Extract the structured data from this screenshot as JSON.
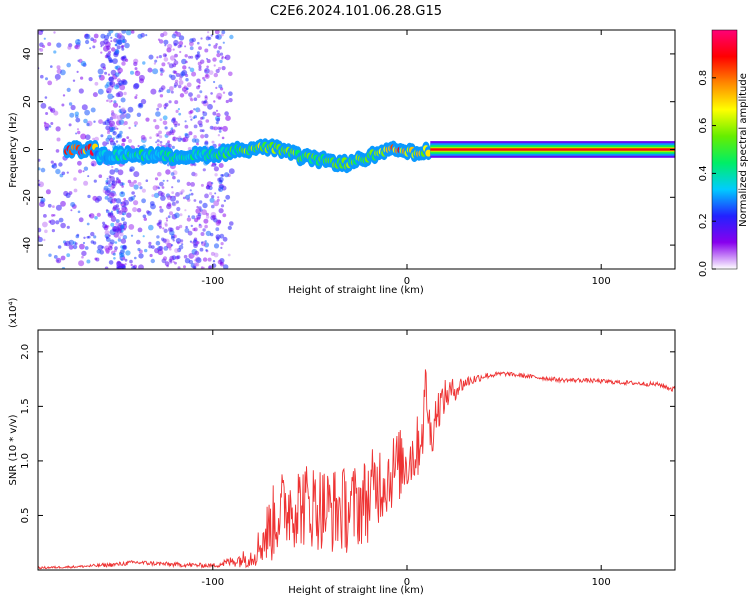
{
  "title": "C2E6.2024.101.06.28.G15",
  "chart_data": [
    {
      "type": "heatmap",
      "xlabel": "Height of straight line (km)",
      "ylabel": "Frequency (Hz)",
      "xlim": [
        -190,
        138
      ],
      "ylim": [
        -50,
        50
      ],
      "xticks": [
        -100,
        0,
        100
      ],
      "yticks": [
        -40,
        -20,
        0,
        20,
        40
      ],
      "colorbar": {
        "label": "Normalized spectral amplitude",
        "range": [
          0.0,
          1.0
        ],
        "ticks": [
          0.0,
          0.2,
          0.4,
          0.6,
          0.8
        ],
        "colors": [
          "#ffffff",
          "#8800ee",
          "#2222ff",
          "#00ccff",
          "#00ee66",
          "#66ee00",
          "#ffff00",
          "#ff8800",
          "#ff0000",
          "#ff0077"
        ]
      },
      "ridge": [
        {
          "x": -160,
          "y": -3,
          "amp": 0.35
        },
        {
          "x": -140,
          "y": -2,
          "amp": 0.45
        },
        {
          "x": -120,
          "y": -3,
          "amp": 0.4
        },
        {
          "x": -100,
          "y": -2,
          "amp": 0.45
        },
        {
          "x": -85,
          "y": 0,
          "amp": 0.55
        },
        {
          "x": -70,
          "y": 1,
          "amp": 0.7
        },
        {
          "x": -55,
          "y": -3,
          "amp": 0.55
        },
        {
          "x": -40,
          "y": -5,
          "amp": 0.5
        },
        {
          "x": -30,
          "y": -6,
          "amp": 0.6
        },
        {
          "x": -20,
          "y": -3,
          "amp": 0.55
        },
        {
          "x": -5,
          "y": 0,
          "amp": 0.85
        },
        {
          "x": 5,
          "y": -2,
          "amp": 0.75
        },
        {
          "x": 12,
          "y": 0,
          "amp": 0.7
        },
        {
          "x": 50,
          "y": 0,
          "amp": 0.9
        },
        {
          "x": 100,
          "y": 0,
          "amp": 0.9
        },
        {
          "x": 138,
          "y": 0,
          "amp": 0.9
        }
      ]
    },
    {
      "type": "line",
      "xlabel": "Height of straight line (km)",
      "ylabel": "SNR (10 * v/v)",
      "y_multiplier": "(x10⁴)",
      "xlim": [
        -190,
        138
      ],
      "ylim": [
        0,
        2.2
      ],
      "xticks": [
        -100,
        0,
        100
      ],
      "yticks": [
        0.5,
        1.0,
        1.5,
        2.0
      ],
      "ytick_labels": [
        "0.5",
        "1.0",
        "1.5",
        "2.0"
      ],
      "color": "#ee3333",
      "x": [
        -190,
        -170,
        -150,
        -140,
        -120,
        -100,
        -90,
        -80,
        -75,
        -70,
        -65,
        -60,
        -50,
        -40,
        -30,
        -20,
        -15,
        -10,
        -5,
        0,
        5,
        8,
        10,
        12,
        15,
        20,
        30,
        40,
        50,
        60,
        70,
        80,
        90,
        100,
        110,
        120,
        130,
        138
      ],
      "y": [
        0.02,
        0.03,
        0.05,
        0.07,
        0.05,
        0.04,
        0.08,
        0.12,
        0.25,
        0.4,
        0.55,
        0.6,
        0.6,
        0.55,
        0.55,
        0.65,
        0.8,
        0.85,
        0.95,
        1.0,
        1.1,
        1.3,
        1.7,
        1.2,
        1.45,
        1.6,
        1.72,
        1.78,
        1.8,
        1.78,
        1.76,
        1.74,
        1.74,
        1.73,
        1.72,
        1.71,
        1.7,
        1.65
      ],
      "noise": [
        0.01,
        0.01,
        0.02,
        0.02,
        0.02,
        0.02,
        0.05,
        0.1,
        0.2,
        0.35,
        0.35,
        0.4,
        0.4,
        0.4,
        0.4,
        0.4,
        0.4,
        0.35,
        0.35,
        0.3,
        0.3,
        0.3,
        0.3,
        0.25,
        0.2,
        0.15,
        0.06,
        0.03,
        0.02,
        0.02,
        0.02,
        0.02,
        0.02,
        0.02,
        0.02,
        0.02,
        0.02,
        0.03
      ]
    }
  ]
}
